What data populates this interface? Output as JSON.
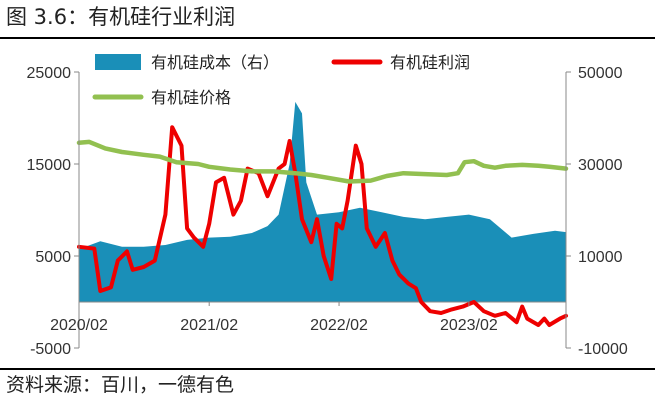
{
  "figure": {
    "title": "图 3.6：有机硅行业利润",
    "source": "资料来源：百川，一德有色"
  },
  "chart_data": {
    "type": "line",
    "x_ticks": [
      "2020/02",
      "2021/02",
      "2022/02",
      "2023/02"
    ],
    "x_tick_dates": [
      "2020-02-01",
      "2021-02-01",
      "2022-02-01",
      "2023-02-01"
    ],
    "x_range": [
      "2020-02-01",
      "2023-11-01"
    ],
    "y_left": {
      "ticks": [
        "25000",
        "15000",
        "5000",
        "-5000"
      ],
      "range": [
        -5000,
        25000
      ]
    },
    "y_right": {
      "ticks": [
        "50000",
        "30000",
        "10000",
        "-10000"
      ],
      "range": [
        -10000,
        50000
      ]
    },
    "legend": [
      "有机硅成本（右）",
      "有机硅利润",
      "有机硅价格"
    ],
    "series": [
      {
        "name": "有机硅成本（右）",
        "type": "area",
        "axis": "right",
        "color": "#1a8fb8",
        "points": [
          [
            "2020-02-01",
            11500
          ],
          [
            "2020-04-01",
            13200
          ],
          [
            "2020-06-01",
            12000
          ],
          [
            "2020-08-01",
            12000
          ],
          [
            "2020-10-01",
            12400
          ],
          [
            "2020-12-01",
            13500
          ],
          [
            "2021-02-01",
            14000
          ],
          [
            "2021-04-01",
            14200
          ],
          [
            "2021-06-01",
            15000
          ],
          [
            "2021-07-15",
            16500
          ],
          [
            "2021-08-15",
            19000
          ],
          [
            "2021-09-15",
            30000
          ],
          [
            "2021-10-01",
            43500
          ],
          [
            "2021-10-20",
            41000
          ],
          [
            "2021-11-01",
            26000
          ],
          [
            "2021-12-01",
            19000
          ],
          [
            "2022-02-01",
            19500
          ],
          [
            "2022-04-01",
            20500
          ],
          [
            "2022-06-01",
            19500
          ],
          [
            "2022-08-01",
            18500
          ],
          [
            "2022-10-01",
            18000
          ],
          [
            "2022-12-01",
            18500
          ],
          [
            "2023-02-01",
            19000
          ],
          [
            "2023-04-01",
            18000
          ],
          [
            "2023-06-01",
            14000
          ],
          [
            "2023-08-01",
            14800
          ],
          [
            "2023-10-01",
            15500
          ],
          [
            "2023-11-01",
            15200
          ]
        ]
      },
      {
        "name": "有机硅利润",
        "type": "line",
        "axis": "left",
        "color": "#ee0000",
        "points": [
          [
            "2020-02-01",
            6000
          ],
          [
            "2020-03-15",
            5800
          ],
          [
            "2020-04-01",
            1200
          ],
          [
            "2020-05-01",
            1600
          ],
          [
            "2020-05-20",
            4500
          ],
          [
            "2020-06-15",
            5500
          ],
          [
            "2020-07-01",
            3500
          ],
          [
            "2020-08-01",
            3800
          ],
          [
            "2020-09-01",
            4500
          ],
          [
            "2020-10-01",
            9500
          ],
          [
            "2020-10-20",
            19000
          ],
          [
            "2020-11-15",
            17000
          ],
          [
            "2020-12-01",
            8000
          ],
          [
            "2020-12-20",
            7000
          ],
          [
            "2021-01-15",
            6000
          ],
          [
            "2021-02-01",
            8500
          ],
          [
            "2021-02-20",
            13000
          ],
          [
            "2021-03-15",
            13500
          ],
          [
            "2021-04-10",
            9500
          ],
          [
            "2021-05-01",
            11000
          ],
          [
            "2021-05-20",
            14500
          ],
          [
            "2021-06-20",
            14000
          ],
          [
            "2021-07-15",
            11500
          ],
          [
            "2021-08-15",
            14500
          ],
          [
            "2021-09-01",
            15000
          ],
          [
            "2021-09-15",
            17500
          ],
          [
            "2021-10-01",
            14000
          ],
          [
            "2021-10-20",
            9000
          ],
          [
            "2021-11-15",
            6500
          ],
          [
            "2021-12-01",
            9000
          ],
          [
            "2021-12-20",
            5000
          ],
          [
            "2022-01-10",
            2500
          ],
          [
            "2022-01-25",
            8500
          ],
          [
            "2022-02-10",
            8000
          ],
          [
            "2022-02-25",
            11000
          ],
          [
            "2022-03-20",
            17000
          ],
          [
            "2022-04-05",
            15000
          ],
          [
            "2022-04-20",
            8000
          ],
          [
            "2022-05-15",
            6000
          ],
          [
            "2022-06-10",
            7500
          ],
          [
            "2022-07-01",
            4500
          ],
          [
            "2022-07-20",
            3000
          ],
          [
            "2022-08-15",
            2000
          ],
          [
            "2022-09-05",
            1500
          ],
          [
            "2022-09-20",
            0
          ],
          [
            "2022-10-15",
            -1000
          ],
          [
            "2022-11-15",
            -1200
          ],
          [
            "2022-12-15",
            -800
          ],
          [
            "2023-01-15",
            -500
          ],
          [
            "2023-02-15",
            0
          ],
          [
            "2023-03-15",
            -1000
          ],
          [
            "2023-04-15",
            -1500
          ],
          [
            "2023-05-15",
            -1200
          ],
          [
            "2023-06-15",
            -2200
          ],
          [
            "2023-07-01",
            -500
          ],
          [
            "2023-07-15",
            -1800
          ],
          [
            "2023-08-15",
            -2500
          ],
          [
            "2023-09-01",
            -1800
          ],
          [
            "2023-09-15",
            -2500
          ],
          [
            "2023-10-15",
            -1800
          ],
          [
            "2023-11-01",
            -1500
          ]
        ]
      },
      {
        "name": "有机硅价格",
        "type": "line",
        "axis": "left",
        "color": "#92c050",
        "points": [
          [
            "2020-02-01",
            17300
          ],
          [
            "2020-03-01",
            17400
          ],
          [
            "2020-04-15",
            16700
          ],
          [
            "2020-06-01",
            16300
          ],
          [
            "2020-08-01",
            16000
          ],
          [
            "2020-09-15",
            15800
          ],
          [
            "2020-11-01",
            15200
          ],
          [
            "2021-01-01",
            15000
          ],
          [
            "2021-02-01",
            14700
          ],
          [
            "2021-04-01",
            14400
          ],
          [
            "2021-06-01",
            14200
          ],
          [
            "2021-08-01",
            14200
          ],
          [
            "2021-10-01",
            14000
          ],
          [
            "2021-11-15",
            13800
          ],
          [
            "2022-01-01",
            13500
          ],
          [
            "2022-03-01",
            13100
          ],
          [
            "2022-05-01",
            13200
          ],
          [
            "2022-06-15",
            13700
          ],
          [
            "2022-08-01",
            14000
          ],
          [
            "2022-10-01",
            13900
          ],
          [
            "2022-12-01",
            13800
          ],
          [
            "2023-01-01",
            14000
          ],
          [
            "2023-01-20",
            15200
          ],
          [
            "2023-02-15",
            15300
          ],
          [
            "2023-03-15",
            14800
          ],
          [
            "2023-04-15",
            14600
          ],
          [
            "2023-05-15",
            14800
          ],
          [
            "2023-07-01",
            14900
          ],
          [
            "2023-08-15",
            14800
          ],
          [
            "2023-09-15",
            14700
          ],
          [
            "2023-11-01",
            14500
          ]
        ]
      }
    ]
  }
}
